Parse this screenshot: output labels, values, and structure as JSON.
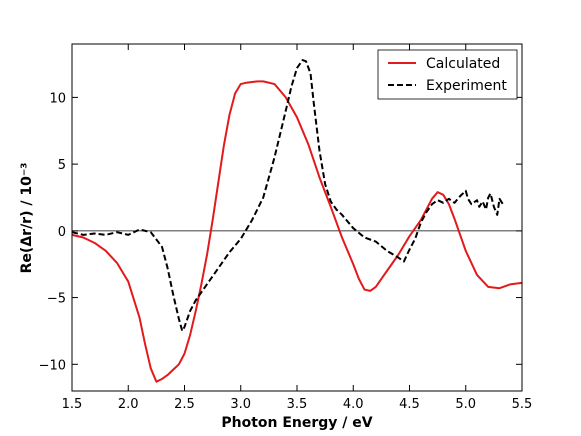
{
  "chart_data": {
    "type": "line",
    "xlabel": "Photon Energy / eV",
    "ylabel": "Re(Δr/r) / 10⁻³",
    "xlim": [
      1.5,
      5.5
    ],
    "ylim": [
      -12,
      14
    ],
    "xticks": [
      1.5,
      2.0,
      2.5,
      3.0,
      3.5,
      4.0,
      4.5,
      5.0,
      5.5
    ],
    "xtick_labels": [
      "1.5",
      "2.0",
      "2.5",
      "3.0",
      "3.5",
      "4.0",
      "4.5",
      "5.0",
      "5.5"
    ],
    "yticks": [
      -10,
      -5,
      0,
      5,
      10
    ],
    "ytick_labels": [
      "−10",
      "−5",
      "0",
      "5",
      "10"
    ],
    "zero_line": true,
    "grid": false,
    "legend_position": "top-right",
    "series": [
      {
        "name": "Calculated",
        "color": "#e31a1c",
        "style": "solid",
        "x": [
          1.5,
          1.6,
          1.7,
          1.8,
          1.9,
          2.0,
          2.1,
          2.15,
          2.2,
          2.25,
          2.3,
          2.35,
          2.4,
          2.45,
          2.5,
          2.55,
          2.6,
          2.65,
          2.7,
          2.75,
          2.8,
          2.85,
          2.9,
          2.95,
          3.0,
          3.05,
          3.1,
          3.15,
          3.2,
          3.3,
          3.4,
          3.5,
          3.6,
          3.7,
          3.8,
          3.9,
          4.0,
          4.05,
          4.1,
          4.15,
          4.2,
          4.3,
          4.4,
          4.5,
          4.6,
          4.7,
          4.75,
          4.8,
          4.85,
          4.9,
          5.0,
          5.1,
          5.2,
          5.3,
          5.4,
          5.5
        ],
        "y": [
          -0.3,
          -0.5,
          -0.9,
          -1.5,
          -2.4,
          -3.8,
          -6.5,
          -8.5,
          -10.3,
          -11.3,
          -11.1,
          -10.8,
          -10.4,
          -10.0,
          -9.2,
          -7.8,
          -6.0,
          -4.0,
          -1.8,
          0.8,
          3.6,
          6.4,
          8.7,
          10.3,
          11.0,
          11.1,
          11.15,
          11.2,
          11.2,
          11.0,
          10.0,
          8.5,
          6.5,
          4.0,
          1.8,
          -0.5,
          -2.5,
          -3.6,
          -4.4,
          -4.5,
          -4.2,
          -3.0,
          -1.8,
          -0.4,
          0.8,
          2.4,
          2.9,
          2.7,
          2.0,
          0.9,
          -1.5,
          -3.3,
          -4.2,
          -4.3,
          -4.0,
          -3.9
        ]
      },
      {
        "name": "Experiment",
        "color": "#000000",
        "style": "dashed",
        "x": [
          1.5,
          1.6,
          1.7,
          1.8,
          1.9,
          2.0,
          2.1,
          2.2,
          2.3,
          2.35,
          2.4,
          2.45,
          2.48,
          2.5,
          2.55,
          2.6,
          2.7,
          2.8,
          2.9,
          3.0,
          3.1,
          3.2,
          3.3,
          3.4,
          3.45,
          3.5,
          3.55,
          3.58,
          3.62,
          3.65,
          3.7,
          3.75,
          3.8,
          3.85,
          3.9,
          4.0,
          4.1,
          4.2,
          4.3,
          4.4,
          4.45,
          4.5,
          4.55,
          4.6,
          4.65,
          4.7,
          4.75,
          4.8,
          4.85,
          4.9,
          4.95,
          5.0,
          5.02,
          5.05,
          5.1,
          5.12,
          5.15,
          5.18,
          5.2,
          5.22,
          5.25,
          5.28,
          5.3,
          5.33
        ],
        "y": [
          -0.1,
          -0.3,
          -0.2,
          -0.3,
          -0.1,
          -0.3,
          0.1,
          -0.1,
          -1.2,
          -2.8,
          -4.8,
          -6.6,
          -7.5,
          -7.2,
          -6.0,
          -5.2,
          -4.0,
          -2.8,
          -1.6,
          -0.6,
          0.8,
          2.5,
          5.5,
          9.0,
          10.8,
          12.2,
          12.8,
          12.7,
          11.8,
          9.5,
          6.0,
          3.5,
          2.2,
          1.6,
          1.2,
          0.2,
          -0.5,
          -0.8,
          -1.5,
          -2.0,
          -2.3,
          -1.4,
          -0.6,
          0.6,
          1.4,
          2.0,
          2.3,
          2.1,
          2.4,
          2.1,
          2.6,
          3.0,
          2.4,
          2.0,
          2.3,
          1.8,
          2.2,
          1.6,
          2.5,
          2.8,
          1.8,
          1.2,
          2.4,
          2.0
        ]
      }
    ]
  }
}
